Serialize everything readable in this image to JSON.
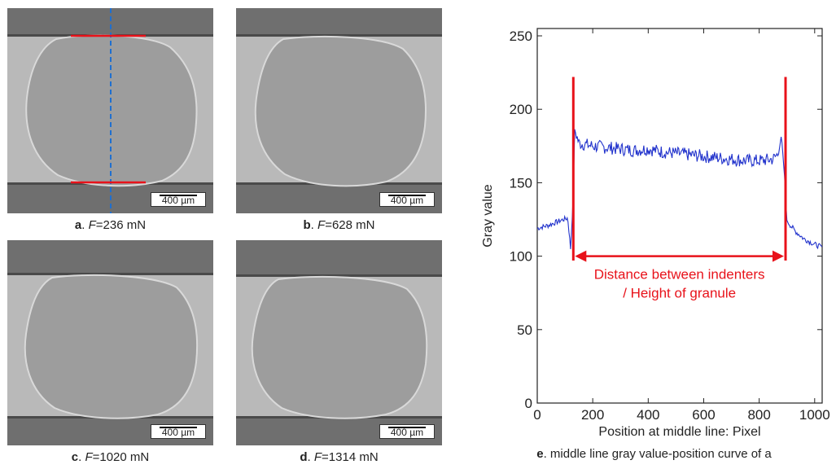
{
  "panels": [
    {
      "letter": "a",
      "prefix": ". ",
      "var": "F",
      "value": "=236 mN",
      "scale": "400 µm"
    },
    {
      "letter": "b",
      "prefix": ". ",
      "var": "F",
      "value": "=628 mN",
      "scale": "400 µm"
    },
    {
      "letter": "c",
      "prefix": ". ",
      "var": "F",
      "value": "=1020 mN",
      "scale": "400 µm"
    },
    {
      "letter": "d",
      "prefix": ". ",
      "var": "F",
      "value": "=1314 mN",
      "scale": "400 µm"
    }
  ],
  "chart_caption": {
    "letter": "e",
    "text": ". middle line gray value-position curve of a"
  },
  "colors": {
    "curve": "#2233cc",
    "annotation": "#e8121a",
    "midline": "#1f6fcf"
  },
  "chart_data": {
    "type": "line",
    "xlabel": "Position at middle line: Pixel",
    "ylabel": "Gray value",
    "xlim": [
      0,
      1027
    ],
    "ylim": [
      0,
      255
    ],
    "xticks": [
      "0",
      "200",
      "400",
      "600",
      "800",
      "1000"
    ],
    "yticks": [
      "0",
      "50",
      "100",
      "150",
      "200",
      "250"
    ],
    "series": [
      {
        "x": [
          0,
          40,
          80,
          110,
          120,
          128,
          135,
          150,
          200,
          250,
          300,
          350,
          400,
          450,
          500,
          550,
          600,
          650,
          700,
          750,
          800,
          850,
          870,
          880,
          890,
          900,
          930,
          960,
          1000,
          1027
        ],
        "y": [
          119,
          121,
          124,
          126,
          105,
          132,
          186,
          177,
          175,
          174,
          173,
          172,
          173,
          171,
          170,
          169,
          168,
          167,
          166,
          165,
          165,
          166,
          170,
          182,
          158,
          124,
          117,
          112,
          108,
          106
        ]
      }
    ],
    "indenter_lines_x": [
      130,
      895
    ],
    "annotation": {
      "text_line1": "Distance between indenters",
      "text_line2": "/ Height of granule",
      "y": 100
    }
  }
}
